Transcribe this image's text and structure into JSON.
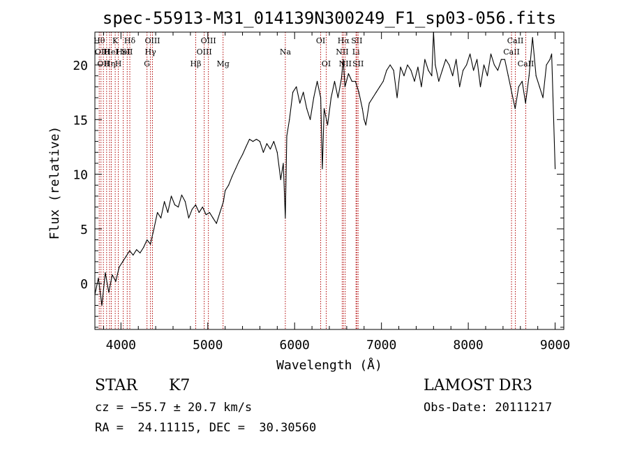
{
  "chart_data": {
    "type": "line",
    "title": "spec-55913-M31_014139N300249_F1_sp03-056.fits",
    "xlabel": "Wavelength (Å)",
    "ylabel": "Flux (relative)",
    "xlim": [
      3700,
      9100
    ],
    "ylim": [
      -4.2,
      23
    ],
    "x_ticks": [
      4000,
      5000,
      6000,
      7000,
      8000,
      9000
    ],
    "y_ticks": [
      0,
      5,
      10,
      15,
      20
    ],
    "series": [
      {
        "x": [
          3700,
          3740,
          3780,
          3820,
          3860,
          3900,
          3940,
          3980,
          4020,
          4060,
          4100,
          4140,
          4180,
          4220,
          4260,
          4300,
          4340,
          4380,
          4420,
          4460,
          4500,
          4540,
          4580,
          4620,
          4660,
          4700,
          4740,
          4780,
          4820,
          4860,
          4900,
          4940,
          4980,
          5020,
          5060,
          5100,
          5140,
          5180,
          5200,
          5240,
          5280,
          5320,
          5360,
          5400,
          5440,
          5480,
          5520,
          5560,
          5600,
          5640,
          5680,
          5720,
          5760,
          5800,
          5840,
          5870,
          5893,
          5910,
          5940,
          5980,
          6020,
          6060,
          6100,
          6140,
          6180,
          6220,
          6260,
          6300,
          6320,
          6340,
          6380,
          6420,
          6460,
          6500,
          6540,
          6560,
          6580,
          6620,
          6660,
          6700,
          6740,
          6780,
          6800,
          6820,
          6860,
          6900,
          6940,
          6980,
          7020,
          7060,
          7100,
          7140,
          7180,
          7220,
          7260,
          7300,
          7340,
          7380,
          7420,
          7460,
          7500,
          7540,
          7580,
          7600,
          7620,
          7660,
          7700,
          7740,
          7780,
          7820,
          7860,
          7900,
          7940,
          7980,
          8020,
          8060,
          8100,
          8140,
          8180,
          8220,
          8260,
          8300,
          8340,
          8380,
          8420,
          8460,
          8500,
          8540,
          8580,
          8620,
          8660,
          8700,
          8740,
          8780,
          8820,
          8860,
          8900,
          8940,
          8960,
          9000
        ],
        "y": [
          -1.0,
          0.5,
          -2.0,
          1.0,
          -0.8,
          0.8,
          0.2,
          1.5,
          2.0,
          2.5,
          3.0,
          2.6,
          3.1,
          2.8,
          3.3,
          4.0,
          3.6,
          5.0,
          6.5,
          6.0,
          7.5,
          6.5,
          8.0,
          7.2,
          7.0,
          8.1,
          7.5,
          6.0,
          6.8,
          7.2,
          6.5,
          7.0,
          6.3,
          6.5,
          6.0,
          5.5,
          6.5,
          7.5,
          8.5,
          9.0,
          9.8,
          10.5,
          11.2,
          11.8,
          12.5,
          13.2,
          13.0,
          13.2,
          13.0,
          12.0,
          12.8,
          12.3,
          13.0,
          12.0,
          9.5,
          11.0,
          6.0,
          13.5,
          15.0,
          17.5,
          18.0,
          16.5,
          17.5,
          16.0,
          15.0,
          17.0,
          18.5,
          17.0,
          10.5,
          16.0,
          14.5,
          17.0,
          18.5,
          17.0,
          18.8,
          20.5,
          18.0,
          19.2,
          18.5,
          18.5,
          17.5,
          16.0,
          15.0,
          14.5,
          16.5,
          17.0,
          17.5,
          18.0,
          18.5,
          19.5,
          20.0,
          19.5,
          17.0,
          19.8,
          19.0,
          20.0,
          19.5,
          18.5,
          19.8,
          18.0,
          20.5,
          19.5,
          19.0,
          23.0,
          20.0,
          18.5,
          19.5,
          20.5,
          20.0,
          19.0,
          20.5,
          18.0,
          19.5,
          20.0,
          21.0,
          19.5,
          20.5,
          18.0,
          20.0,
          19.0,
          21.0,
          20.0,
          19.5,
          20.5,
          20.5,
          19.0,
          17.5,
          16.0,
          18.0,
          18.5,
          16.5,
          19.0,
          22.5,
          19.0,
          18.0,
          17.0,
          20.0,
          20.5,
          21.0,
          10.5
        ]
      }
    ],
    "line_markers": [
      {
        "x": 3750,
        "row": 1,
        "label": "Hθ"
      },
      {
        "x": 3770,
        "row": 2,
        "label": "OII"
      },
      {
        "x": 3798,
        "row": 3,
        "label": "OII"
      },
      {
        "x": 3835,
        "row": 2,
        "label": "H"
      },
      {
        "x": 3869,
        "row": 3,
        "label": "Hη"
      },
      {
        "x": 3889,
        "row": 2,
        "label": "HeI"
      },
      {
        "x": 3934,
        "row": 1,
        "label": "K"
      },
      {
        "x": 3970,
        "row": 3,
        "label": "H"
      },
      {
        "x": 4026,
        "row": 2,
        "label": "HeI"
      },
      {
        "x": 4072,
        "row": 2,
        "label": "SII"
      },
      {
        "x": 4102,
        "row": 1,
        "label": "Hδ"
      },
      {
        "x": 4300,
        "row": 3,
        "label": "G"
      },
      {
        "x": 4340,
        "row": 2,
        "label": "Hγ"
      },
      {
        "x": 4363,
        "row": 1,
        "label": "OIII"
      },
      {
        "x": 4861,
        "row": 3,
        "label": "Hβ"
      },
      {
        "x": 4959,
        "row": 2,
        "label": "OIII"
      },
      {
        "x": 5007,
        "row": 1,
        "label": "OIII"
      },
      {
        "x": 5176,
        "row": 3,
        "label": "Mg"
      },
      {
        "x": 5893,
        "row": 2,
        "label": "Na"
      },
      {
        "x": 6300,
        "row": 1,
        "label": "OI"
      },
      {
        "x": 6364,
        "row": 3,
        "label": "OI"
      },
      {
        "x": 6548,
        "row": 2,
        "label": "NII"
      },
      {
        "x": 6563,
        "row": 1,
        "label": "Hα"
      },
      {
        "x": 6583,
        "row": 3,
        "label": "NII"
      },
      {
        "x": 6707,
        "row": 2,
        "label": "Li"
      },
      {
        "x": 6716,
        "row": 1,
        "label": "SII"
      },
      {
        "x": 6731,
        "row": 3,
        "label": "SII"
      },
      {
        "x": 8498,
        "row": 2,
        "label": "CaII"
      },
      {
        "x": 8542,
        "row": 1,
        "label": "CaII"
      },
      {
        "x": 8662,
        "row": 3,
        "label": "CaII"
      }
    ],
    "marker_color": "#b00000"
  },
  "info": {
    "class": "STAR",
    "subclass": "K7",
    "survey": "LAMOST DR3",
    "redshift": "cz = −55.7 ± 20.7 km/s",
    "obsdate": "Obs-Date: 20111217",
    "coords": "RA =  24.11115, DEC =  30.30560"
  }
}
